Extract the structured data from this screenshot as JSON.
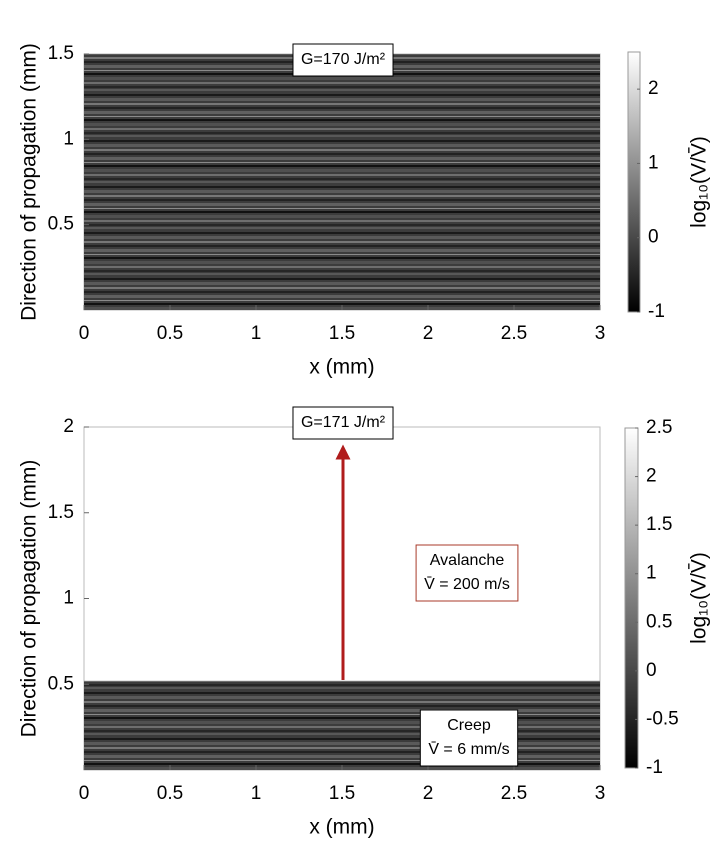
{
  "chart_data": [
    {
      "type": "heatmap",
      "xlabel": "x (mm)",
      "ylabel": "Direction of propagation (mm)",
      "xlim": [
        0,
        3
      ],
      "ylim": [
        0,
        1.5
      ],
      "xticks": [
        0,
        0.5,
        1,
        1.5,
        2,
        2.5,
        3
      ],
      "yticks": [
        0.5,
        1,
        1.5
      ],
      "filled_to": 1.5,
      "colorbar": {
        "label": "log₁₀(V/V̄)",
        "clim": [
          -1,
          2.5
        ],
        "ticks": [
          -1,
          0,
          1,
          2
        ]
      },
      "annotations": [
        {
          "lines": [
            "G=170 J/m²"
          ]
        }
      ]
    },
    {
      "type": "heatmap",
      "xlabel": "x (mm)",
      "ylabel": "Direction of propagation (mm)",
      "xlim": [
        0,
        3
      ],
      "ylim": [
        0,
        2
      ],
      "xticks": [
        0,
        0.5,
        1,
        1.5,
        2,
        2.5,
        3
      ],
      "yticks": [
        0.5,
        1,
        1.5,
        2
      ],
      "filled_to": 0.52,
      "colorbar": {
        "label": "log₁₀(V/V̄)",
        "clim": [
          -1,
          2.5
        ],
        "ticks": [
          -1,
          -0.5,
          0,
          0.5,
          1,
          1.5,
          2,
          2.5
        ]
      },
      "annotations": [
        {
          "lines": [
            "G=171 J/m²"
          ]
        },
        {
          "lines": [
            "Avalanche",
            "V̄ = 200 m/s"
          ]
        },
        {
          "lines": [
            "Creep",
            "V̄ = 6 mm/s"
          ]
        }
      ]
    }
  ]
}
